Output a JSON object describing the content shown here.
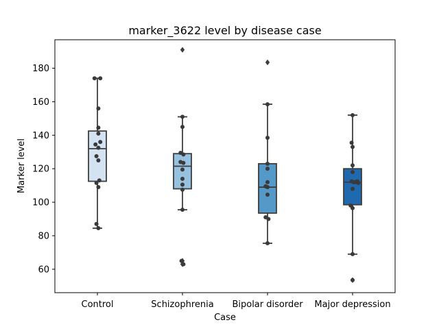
{
  "chart_data": {
    "type": "box",
    "title": "marker_3622 level by disease case",
    "xlabel": "Case",
    "ylabel": "Marker level",
    "ylim": [
      46,
      197
    ],
    "yticks": [
      60,
      80,
      100,
      120,
      140,
      160,
      180
    ],
    "grid": false,
    "categories": [
      "Control",
      "Schizophrenia",
      "Bipolar disorder",
      "Major depression"
    ],
    "colors": [
      "#d4e3f2",
      "#96c2df",
      "#5499c7",
      "#1f6aae"
    ],
    "boxes": [
      {
        "q1": 112.5,
        "median": 132.0,
        "q3": 142.5,
        "whisker_low": 84.5,
        "whisker_high": 174.0,
        "outliers": []
      },
      {
        "q1": 108.0,
        "median": 121.5,
        "q3": 129.0,
        "whisker_low": 95.5,
        "whisker_high": 151.0,
        "outliers": [
          63.0,
          65.0,
          191.0
        ]
      },
      {
        "q1": 93.5,
        "median": 109.0,
        "q3": 123.0,
        "whisker_low": 75.5,
        "whisker_high": 158.5,
        "outliers": [
          183.5
        ]
      },
      {
        "q1": 98.5,
        "median": 112.0,
        "q3": 120.0,
        "whisker_low": 69.0,
        "whisker_high": 152.0,
        "outliers": [
          53.5
        ]
      }
    ],
    "points": [
      [
        {
          "y": 174.0,
          "dx": -0.3
        },
        {
          "y": 174.0,
          "dx": 0.3
        },
        {
          "y": 156.0,
          "dx": 0.1
        },
        {
          "y": 144.5,
          "dx": 0.1
        },
        {
          "y": 141.0,
          "dx": 0.1
        },
        {
          "y": 136.0,
          "dx": 0.3
        },
        {
          "y": 134.5,
          "dx": -0.2
        },
        {
          "y": 132.5,
          "dx": 0.1
        },
        {
          "y": 127.5,
          "dx": -0.1
        },
        {
          "y": 125.0,
          "dx": 0.1
        },
        {
          "y": 113.0,
          "dx": 0.2
        },
        {
          "y": 111.5,
          "dx": -0.1
        },
        {
          "y": 109.0,
          "dx": 0.1
        },
        {
          "y": 87.0,
          "dx": -0.1
        },
        {
          "y": 84.5,
          "dx": 0.1
        }
      ],
      [
        {
          "y": 151.0,
          "dx": 0.0
        },
        {
          "y": 145.0,
          "dx": 0.0
        },
        {
          "y": 129.5,
          "dx": -0.2
        },
        {
          "y": 128.5,
          "dx": 0.1
        },
        {
          "y": 124.0,
          "dx": -0.2
        },
        {
          "y": 123.5,
          "dx": 0.1
        },
        {
          "y": 119.5,
          "dx": 0.0
        },
        {
          "y": 114.0,
          "dx": 0.0
        },
        {
          "y": 110.5,
          "dx": 0.0
        },
        {
          "y": 107.5,
          "dx": 0.0
        },
        {
          "y": 95.5,
          "dx": 0.0
        },
        {
          "y": 65.0,
          "dx": -0.1
        },
        {
          "y": 63.0,
          "dx": 0.1
        }
      ],
      [
        {
          "y": 158.5,
          "dx": 0.0
        },
        {
          "y": 138.5,
          "dx": 0.0
        },
        {
          "y": 123.0,
          "dx": 0.0
        },
        {
          "y": 120.0,
          "dx": 0.0
        },
        {
          "y": 112.0,
          "dx": 0.0
        },
        {
          "y": 109.5,
          "dx": -0.2
        },
        {
          "y": 109.0,
          "dx": 0.0
        },
        {
          "y": 104.5,
          "dx": 0.0
        },
        {
          "y": 91.0,
          "dx": -0.2
        },
        {
          "y": 90.0,
          "dx": 0.1
        },
        {
          "y": 75.5,
          "dx": 0.0
        }
      ],
      [
        {
          "y": 152.0,
          "dx": 0.0
        },
        {
          "y": 135.5,
          "dx": -0.1
        },
        {
          "y": 133.0,
          "dx": 0.0
        },
        {
          "y": 122.0,
          "dx": 0.0
        },
        {
          "y": 118.0,
          "dx": 0.0
        },
        {
          "y": 112.5,
          "dx": 0.5
        },
        {
          "y": 112.5,
          "dx": -0.1
        },
        {
          "y": 112.0,
          "dx": 0.1
        },
        {
          "y": 112.0,
          "dx": 0.3
        },
        {
          "y": 111.5,
          "dx": 0.6
        },
        {
          "y": 108.0,
          "dx": 0.0
        },
        {
          "y": 98.0,
          "dx": -0.2
        },
        {
          "y": 96.5,
          "dx": 0.0
        },
        {
          "y": 69.0,
          "dx": 0.0
        },
        {
          "y": 53.5,
          "dx": 0.0
        }
      ]
    ]
  }
}
